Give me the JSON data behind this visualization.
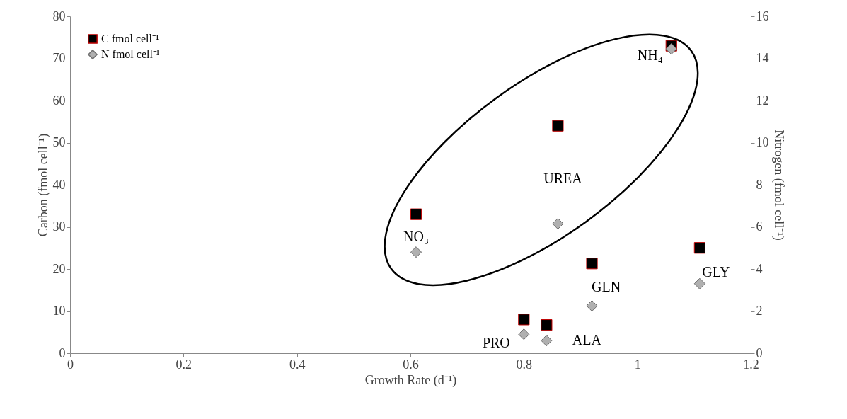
{
  "chart_data": {
    "type": "scatter",
    "xlabel": "Growth Rate (d⁻¹)",
    "ylabel": "Carbon (fmol cell⁻¹)",
    "y2label": "Nitrogen (fmol cell⁻¹)",
    "xlim": [
      0,
      1.2
    ],
    "xticks": [
      0,
      0.2,
      0.4,
      0.6,
      0.8,
      1,
      1.2
    ],
    "ylim": [
      0,
      80
    ],
    "yticks": [
      0,
      10,
      20,
      30,
      40,
      50,
      60,
      70,
      80
    ],
    "y2lim": [
      0,
      16
    ],
    "y2ticks": [
      0,
      2,
      4,
      6,
      8,
      10,
      12,
      14,
      16
    ],
    "grid": false,
    "legend": "top left",
    "series": [
      {
        "name": "C fmol cell⁻¹",
        "color": "#000000",
        "marker": "square",
        "x": [
          0.61,
          0.8,
          0.84,
          0.86,
          0.92,
          1.06,
          1.11
        ],
        "values": [
          33,
          8,
          6.7,
          54,
          21.3,
          73,
          25
        ]
      },
      {
        "name": "N fmol cell⁻¹",
        "color": "#b0b0b0",
        "marker": "diamond",
        "axis": "y2",
        "x": [
          0.61,
          0.8,
          0.84,
          0.86,
          0.92,
          1.06,
          1.11
        ],
        "values": [
          4.8,
          0.9,
          0.6,
          6.15,
          2.25,
          14.45,
          3.3
        ]
      }
    ],
    "annotations": [
      "NO₃",
      "PRO",
      "ALA",
      "UREA",
      "GLN",
      "NH₄",
      "GLY"
    ]
  }
}
